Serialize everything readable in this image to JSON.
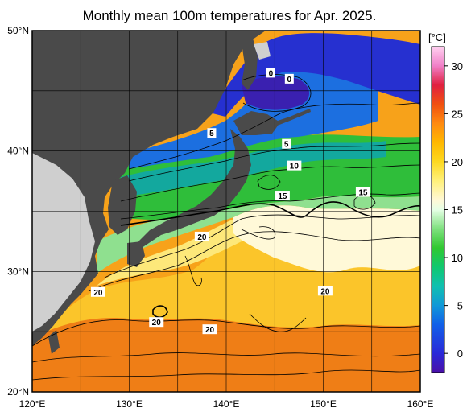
{
  "title": "Monthly mean 100m temperatures for Apr. 2025.",
  "colorbar": {
    "unit": "[°C]",
    "ticks": [
      "30",
      "25",
      "20",
      "15",
      "10",
      "5",
      "0"
    ],
    "tick_values": [
      30,
      25,
      20,
      15,
      10,
      5,
      0
    ],
    "range": [
      -2,
      32
    ],
    "stops": [
      {
        "t": -2,
        "color": "#4a0fa8"
      },
      {
        "t": 0,
        "color": "#2a28d8"
      },
      {
        "t": 3,
        "color": "#1160e8"
      },
      {
        "t": 5,
        "color": "#1198d8"
      },
      {
        "t": 7,
        "color": "#10c0b0"
      },
      {
        "t": 9,
        "color": "#10c870"
      },
      {
        "t": 11,
        "color": "#30c830"
      },
      {
        "t": 13,
        "color": "#7ee07e"
      },
      {
        "t": 15,
        "color": "#e6ffe6"
      },
      {
        "t": 16,
        "color": "#fff8d6"
      },
      {
        "t": 18,
        "color": "#fff07a"
      },
      {
        "t": 20,
        "color": "#fdd820"
      },
      {
        "t": 22,
        "color": "#ffb800"
      },
      {
        "t": 24,
        "color": "#ff8a10"
      },
      {
        "t": 26,
        "color": "#f05010"
      },
      {
        "t": 28,
        "color": "#e02040"
      },
      {
        "t": 30,
        "color": "#f080c8"
      },
      {
        "t": 32,
        "color": "#ffd0f0"
      }
    ]
  },
  "axes": {
    "lat_ticks": [
      "50°N",
      "40°N",
      "30°N",
      "20°N"
    ],
    "lon_ticks": [
      "120°E",
      "130°E",
      "140°E",
      "150°E",
      "160°E"
    ],
    "lat_range": [
      20,
      50
    ],
    "lon_range": [
      120,
      160
    ],
    "grid": true
  },
  "contour_labels": [
    {
      "text": "0",
      "lon": 144.6,
      "lat": 46.5
    },
    {
      "text": "0",
      "lon": 146.5,
      "lat": 46.0
    },
    {
      "text": "5",
      "lon": 138.5,
      "lat": 41.5
    },
    {
      "text": "5",
      "lon": 146.2,
      "lat": 40.6
    },
    {
      "text": "10",
      "lon": 147.0,
      "lat": 38.8
    },
    {
      "text": "15",
      "lon": 145.8,
      "lat": 36.3
    },
    {
      "text": "15",
      "lon": 154.1,
      "lat": 36.6
    },
    {
      "text": "20",
      "lon": 137.5,
      "lat": 32.9
    },
    {
      "text": "20",
      "lon": 126.8,
      "lat": 28.3
    },
    {
      "text": "20",
      "lon": 132.8,
      "lat": 25.8
    },
    {
      "text": "20",
      "lon": 138.3,
      "lat": 25.2
    },
    {
      "text": "20",
      "lon": 150.2,
      "lat": 28.4
    }
  ],
  "colors": {
    "land": "#4a4a4a",
    "land_light": "#cfcfcf",
    "frame": "#000000"
  }
}
